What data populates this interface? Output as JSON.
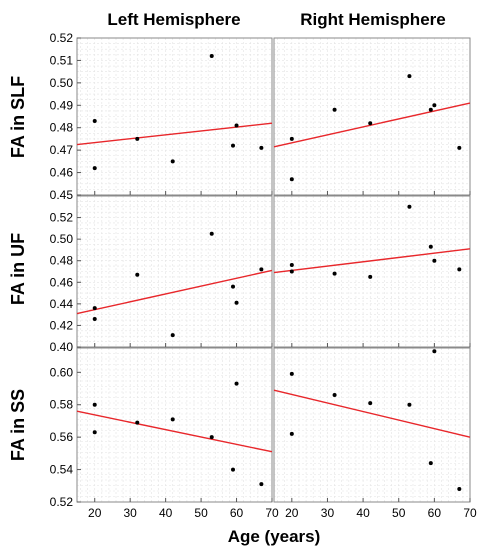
{
  "figure": {
    "col_titles": [
      "Left Hemisphere",
      "Right Hemisphere"
    ],
    "row_titles": [
      "FA in SLF",
      "FA in UF",
      "FA in SS"
    ],
    "xlabel": "Age (years)"
  },
  "colors": {
    "regression_line": "#e8272b",
    "points": "#000000",
    "grid": "#e3e3e3",
    "frame": "#8a8a8a"
  },
  "chart_data": [
    {
      "type": "scatter",
      "row": "FA in SLF",
      "col": "Left Hemisphere",
      "xlim": [
        15,
        70
      ],
      "ylim": [
        0.45,
        0.52
      ],
      "xticks": [
        "20",
        "30",
        "40",
        "50",
        "60",
        "70"
      ],
      "yticks": [
        "0.45",
        "0.46",
        "0.47",
        "0.48",
        "0.49",
        "0.50",
        "0.51",
        "0.52"
      ],
      "x": [
        20,
        20,
        32,
        42,
        53,
        59,
        60,
        67
      ],
      "y": [
        0.483,
        0.462,
        0.475,
        0.465,
        0.512,
        0.472,
        0.481,
        0.471
      ],
      "fit": [
        [
          15,
          0.4725
        ],
        [
          70,
          0.482
        ]
      ],
      "grid": true
    },
    {
      "type": "scatter",
      "row": "FA in SLF",
      "col": "Right Hemisphere",
      "xlim": [
        15,
        70
      ],
      "ylim": [
        0.45,
        0.52
      ],
      "xticks": [
        "20",
        "30",
        "40",
        "50",
        "60",
        "70"
      ],
      "x": [
        20,
        20,
        32,
        42,
        53,
        59,
        60,
        67
      ],
      "y": [
        0.475,
        0.457,
        0.488,
        0.482,
        0.503,
        0.488,
        0.49,
        0.471
      ],
      "fit": [
        [
          15,
          0.4715
        ],
        [
          70,
          0.491
        ]
      ],
      "grid": true
    },
    {
      "type": "scatter",
      "row": "FA in UF",
      "col": "Left Hemisphere",
      "xlim": [
        15,
        70
      ],
      "ylim": [
        0.4,
        0.54
      ],
      "xticks": [
        "20",
        "30",
        "40",
        "50",
        "60",
        "70"
      ],
      "yticks": [
        "0.40",
        "0.42",
        "0.44",
        "0.46",
        "0.48",
        "0.50",
        "0.52"
      ],
      "x": [
        20,
        20,
        32,
        42,
        53,
        59,
        60,
        67
      ],
      "y": [
        0.436,
        0.426,
        0.467,
        0.411,
        0.505,
        0.456,
        0.441,
        0.472
      ],
      "fit": [
        [
          15,
          0.431
        ],
        [
          70,
          0.471
        ]
      ],
      "grid": true
    },
    {
      "type": "scatter",
      "row": "FA in UF",
      "col": "Right Hemisphere",
      "xlim": [
        15,
        70
      ],
      "ylim": [
        0.4,
        0.54
      ],
      "xticks": [
        "20",
        "30",
        "40",
        "50",
        "60",
        "70"
      ],
      "x": [
        20,
        20,
        32,
        42,
        53,
        59,
        60,
        67
      ],
      "y": [
        0.476,
        0.47,
        0.468,
        0.465,
        0.53,
        0.493,
        0.48,
        0.472
      ],
      "fit": [
        [
          15,
          0.469
        ],
        [
          70,
          0.491
        ]
      ],
      "grid": true
    },
    {
      "type": "scatter",
      "row": "FA in SS",
      "col": "Left Hemisphere",
      "xlim": [
        15,
        70
      ],
      "ylim": [
        0.52,
        0.615
      ],
      "xticks": [
        "20",
        "30",
        "40",
        "50",
        "60",
        "70"
      ],
      "yticks": [
        "0.52",
        "0.54",
        "0.56",
        "0.58",
        "0.60"
      ],
      "x": [
        20,
        20,
        32,
        42,
        53,
        59,
        60,
        67
      ],
      "y": [
        0.58,
        0.563,
        0.569,
        0.571,
        0.56,
        0.54,
        0.593,
        0.531
      ],
      "fit": [
        [
          15,
          0.576
        ],
        [
          70,
          0.551
        ]
      ],
      "grid": true
    },
    {
      "type": "scatter",
      "row": "FA in SS",
      "col": "Right Hemisphere",
      "xlim": [
        15,
        70
      ],
      "ylim": [
        0.52,
        0.615
      ],
      "xticks": [
        "20",
        "30",
        "40",
        "50",
        "60",
        "70"
      ],
      "x": [
        20,
        20,
        32,
        42,
        53,
        59,
        60,
        67
      ],
      "y": [
        0.599,
        0.562,
        0.586,
        0.581,
        0.58,
        0.544,
        0.613,
        0.528
      ],
      "fit": [
        [
          15,
          0.589
        ],
        [
          70,
          0.56
        ]
      ],
      "grid": true
    }
  ]
}
